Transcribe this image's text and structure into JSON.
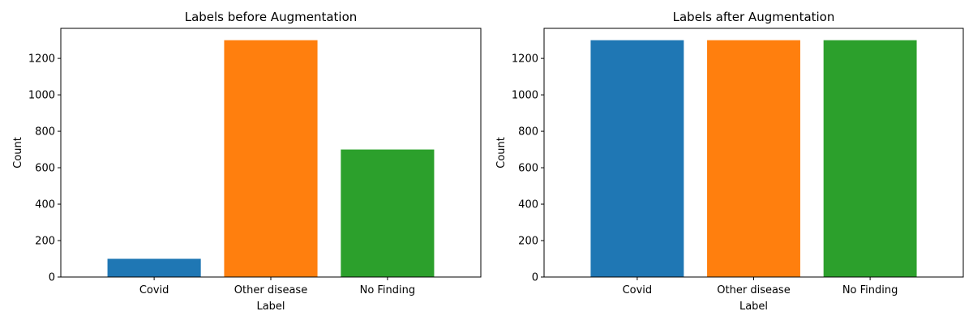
{
  "chart_data": [
    {
      "type": "bar",
      "title": "Labels before Augmentation",
      "xlabel": "Label",
      "ylabel": "Count",
      "categories": [
        "Covid",
        "Other disease",
        "No Finding"
      ],
      "values": [
        100,
        1300,
        700
      ],
      "colors": [
        "#1f77b4",
        "#ff7f0e",
        "#2ca02c"
      ],
      "ylim": [
        0,
        1365
      ],
      "yticks": [
        0,
        200,
        400,
        600,
        800,
        1000,
        1200
      ],
      "grid": false
    },
    {
      "type": "bar",
      "title": "Labels after Augmentation",
      "xlabel": "Label",
      "ylabel": "Count",
      "categories": [
        "Covid",
        "Other disease",
        "No Finding"
      ],
      "values": [
        1300,
        1300,
        1300
      ],
      "colors": [
        "#1f77b4",
        "#ff7f0e",
        "#2ca02c"
      ],
      "ylim": [
        0,
        1365
      ],
      "yticks": [
        0,
        200,
        400,
        600,
        800,
        1000,
        1200
      ],
      "grid": false
    }
  ]
}
